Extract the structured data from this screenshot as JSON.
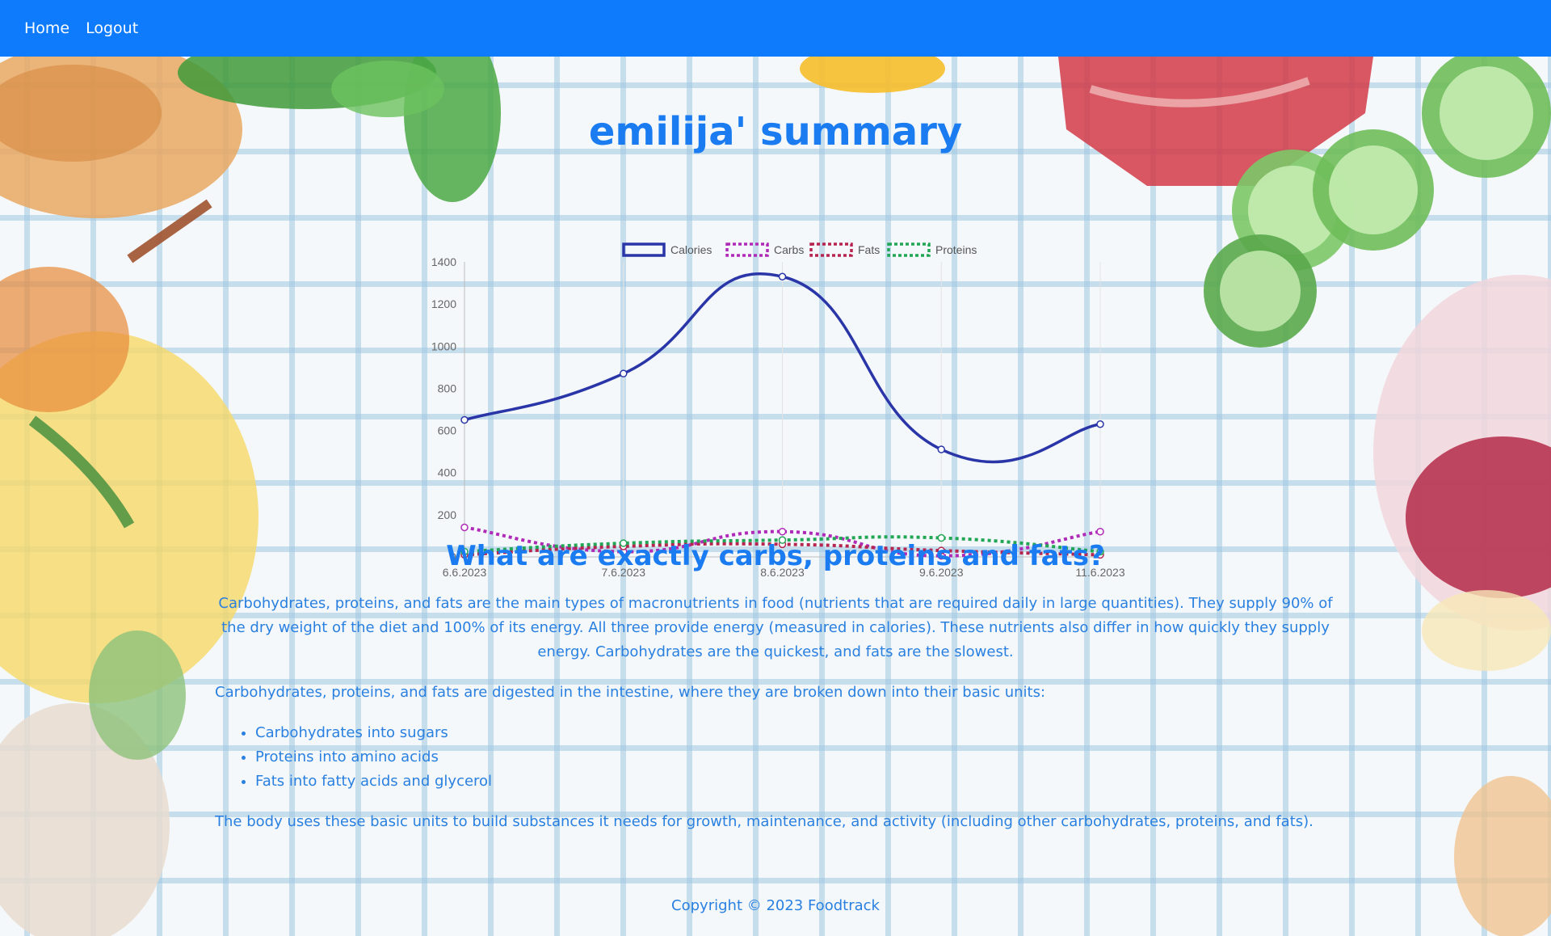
{
  "nav": {
    "home": "Home",
    "logout": "Logout"
  },
  "page": {
    "title": "emilija' summary"
  },
  "info": {
    "heading": "What are exactly carbs, proteins and fats?",
    "paragraph1": "Carbohydrates, proteins, and fats are the main types of macronutrients in food (nutrients that are required daily in large quantities). They supply 90% of the dry weight of the diet and 100% of its energy. All three provide energy (measured in calories). These nutrients also differ in how quickly they supply energy. Carbohydrates are the quickest, and fats are the slowest.",
    "paragraph2": "Carbohydrates, proteins, and fats are digested in the intestine, where they are broken down into their basic units:",
    "list": [
      "Carbohydrates into sugars",
      "Proteins into amino acids",
      "Fats into fatty acids and glycerol"
    ],
    "paragraph3": "The body uses these basic units to build substances it needs for growth, maintenance, and activity (including other carbohydrates, proteins, and fats)."
  },
  "footer": {
    "text": "Copyright © 2023 Foodtrack"
  },
  "colors": {
    "navbar": "#0d7bfb",
    "heading": "#1a7cf0",
    "text": "#2a80e0"
  },
  "chart_data": {
    "type": "line",
    "categories": [
      "6.6.2023",
      "7.6.2023",
      "8.6.2023",
      "9.6.2023",
      "11.6.2023"
    ],
    "ylim": [
      0,
      1400
    ],
    "yticks": [
      0,
      200,
      400,
      600,
      800,
      1000,
      1200,
      1400
    ],
    "legend_position": "top",
    "grid": "vertical",
    "series": [
      {
        "name": "Calories",
        "color": "#2a36a8",
        "dashed": false,
        "values": [
          650,
          870,
          1330,
          510,
          630
        ]
      },
      {
        "name": "Carbs",
        "color": "#b02ab8",
        "dashed": true,
        "values": [
          140,
          25,
          120,
          5,
          120
        ]
      },
      {
        "name": "Fats",
        "color": "#b5254f",
        "dashed": true,
        "values": [
          10,
          50,
          60,
          30,
          10
        ]
      },
      {
        "name": "Proteins",
        "color": "#22a655",
        "dashed": true,
        "values": [
          25,
          65,
          80,
          90,
          25
        ]
      }
    ]
  }
}
